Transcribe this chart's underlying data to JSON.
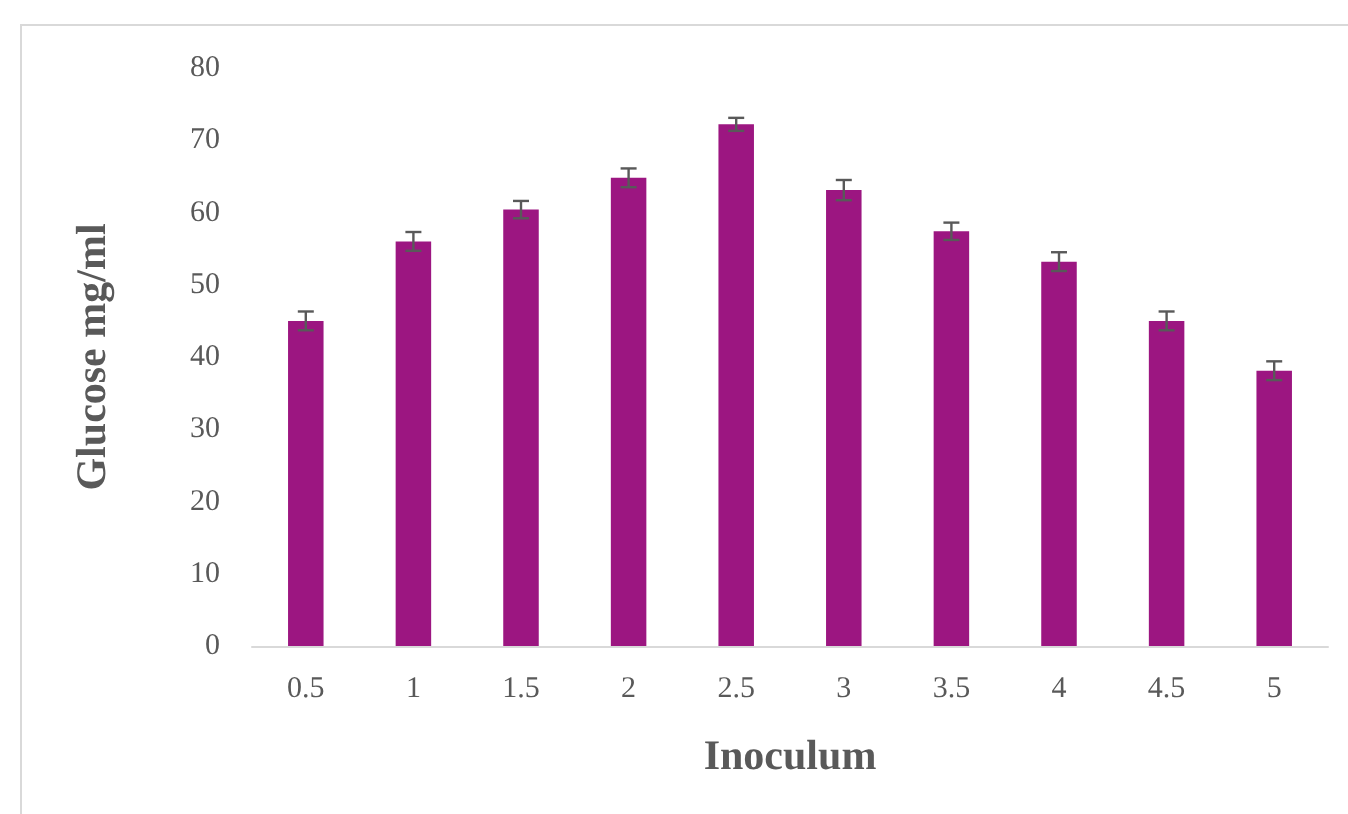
{
  "chart_data": {
    "type": "bar",
    "xlabel": "Inoculum",
    "ylabel": "Glucose mg/ml",
    "categories": [
      "0.5",
      "1",
      "1.5",
      "2",
      "2.5",
      "3",
      "3.5",
      "4",
      "4.5",
      "5"
    ],
    "values": [
      45,
      56,
      60.4,
      64.8,
      72.2,
      63.1,
      57.4,
      53.2,
      45,
      38.1
    ],
    "errors": [
      1.3,
      1.3,
      1.2,
      1.3,
      0.9,
      1.4,
      1.2,
      1.3,
      1.3,
      1.3
    ],
    "color": "#9c1681",
    "ylim": [
      0,
      80
    ],
    "yticks": [
      0,
      10,
      20,
      30,
      40,
      50,
      60,
      70,
      80
    ],
    "grid": false
  }
}
